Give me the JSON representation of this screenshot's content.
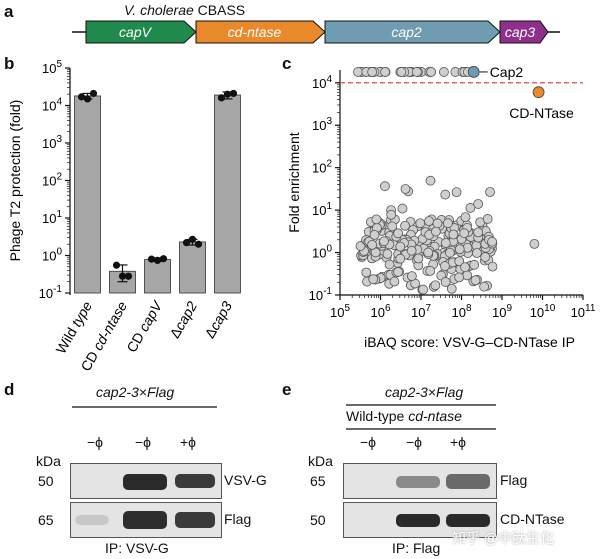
{
  "panels": {
    "a": "a",
    "b": "b",
    "c": "c",
    "d": "d",
    "e": "e"
  },
  "panel_a": {
    "title_italic": "V. cholerae",
    "title_rest": " CBASS",
    "genes": [
      {
        "name": "capV",
        "color": "#1f8a4c"
      },
      {
        "name": "cd-ntase",
        "color": "#e8892b"
      },
      {
        "name": "cap2",
        "color": "#6f9cb1"
      },
      {
        "name": "cap3",
        "color": "#8e2f8c"
      }
    ]
  },
  "chart_data": [
    {
      "type": "bar",
      "panel": "b",
      "ylabel": "Phage T2 protection (fold)",
      "yscale": "log",
      "ylim": [
        0.1,
        100000
      ],
      "yticks": [
        "10^-1",
        "10^0",
        "10^1",
        "10^2",
        "10^3",
        "10^4",
        "10^5"
      ],
      "categories": [
        "Wild type",
        "CD cd-ntase",
        "CD capV",
        "Δcap2",
        "Δcap3"
      ],
      "values": [
        18000,
        0.38,
        0.78,
        2.3,
        19000
      ],
      "errors": [
        3000,
        0.18,
        0.08,
        0.4,
        4000
      ],
      "replicates": [
        [
          17000,
          15000,
          21000
        ],
        [
          0.55,
          0.28,
          0.28
        ],
        [
          0.8,
          0.74,
          0.82
        ],
        [
          2.2,
          2.7,
          2.0
        ],
        [
          16000,
          20000,
          21000
        ]
      ],
      "bar_color": "#a6a6a6"
    },
    {
      "type": "scatter",
      "panel": "c",
      "xlabel": "iBAQ score: VSV-G–CD-NTase IP",
      "ylabel": "Fold enrichment",
      "xscale": "log",
      "yscale": "log",
      "xlim": [
        100000,
        100000000000
      ],
      "ylim": [
        0.1,
        20000
      ],
      "xticks": [
        "10^5",
        "10^6",
        "10^7",
        "10^8",
        "10^9",
        "10^10",
        "10^11"
      ],
      "yticks": [
        "10^-1",
        "10^0",
        "10^1",
        "10^2",
        "10^3",
        "10^4"
      ],
      "threshold": 10000,
      "highlights": [
        {
          "name": "Cap2",
          "x": 200000000,
          "y": 18000,
          "color": "#6f9cb1"
        },
        {
          "name": "CD-NTase",
          "x": 8000000000,
          "y": 6000,
          "color": "#e8892b"
        }
      ]
    }
  ],
  "panel_d": {
    "construct": "cap2-3×Flag",
    "lanes": [
      "−ϕ",
      "−ϕ",
      "+ϕ"
    ],
    "kda_label": "kDa",
    "rows": [
      {
        "kda": "50",
        "label": "VSV-G"
      },
      {
        "kda": "65",
        "label": "Flag"
      }
    ],
    "ip_label": "IP: VSV-G"
  },
  "panel_e": {
    "construct": "cap2-3×Flag",
    "background": "Wild-type cd-ntase",
    "lanes": [
      "−ϕ",
      "−ϕ",
      "+ϕ"
    ],
    "kda_label": "kDa",
    "rows": [
      {
        "kda": "65",
        "label": "Flag"
      },
      {
        "kda": "50",
        "label": "CD-NTase"
      }
    ],
    "ip_label": "IP: Flag"
  },
  "watermark": "知乎 @中肽生化"
}
